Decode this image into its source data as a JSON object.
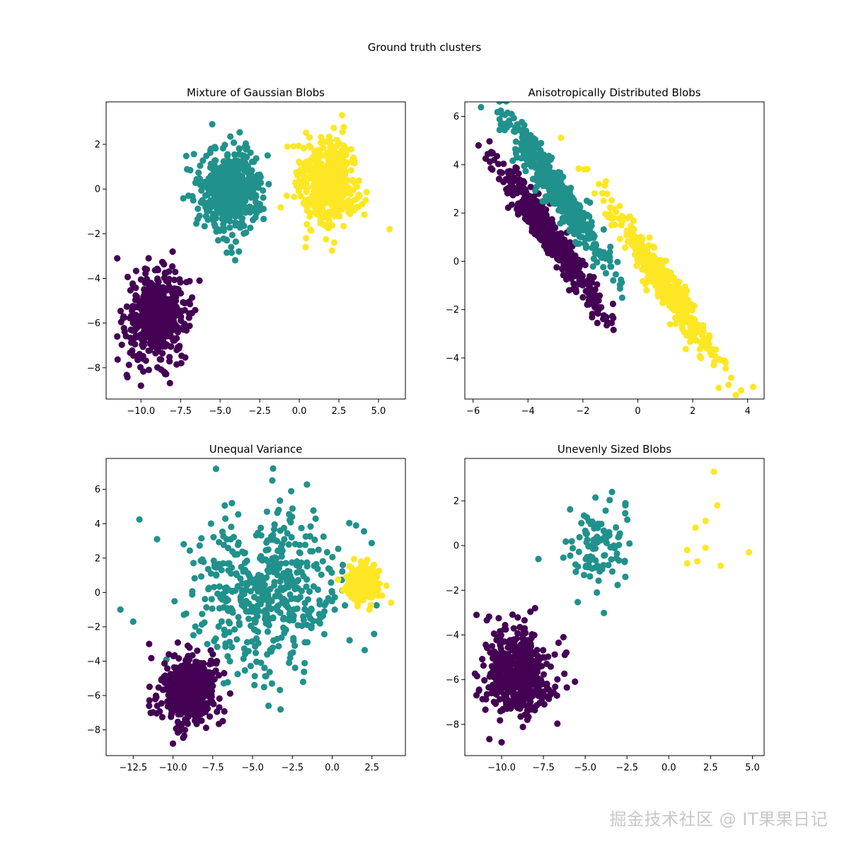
{
  "figure": {
    "suptitle": "Ground truth clusters",
    "colors": {
      "cluster0": "#440154",
      "cluster1": "#21918c",
      "cluster2": "#fde725"
    }
  },
  "watermark": "掘金技术社区 @ IT果果日记",
  "chart_data": [
    {
      "type": "scatter",
      "title": "Mixture of Gaussian Blobs",
      "xlabel": "",
      "ylabel": "",
      "xlim": [
        -12.2,
        6.7
      ],
      "ylim": [
        -9.4,
        3.9
      ],
      "xticks": [
        -10.0,
        -7.5,
        -5.0,
        -2.5,
        0.0,
        2.5,
        5.0
      ],
      "xtick_labels": [
        "−10.0",
        "−7.5",
        "−5.0",
        "−2.5",
        "0.0",
        "2.5",
        "5.0"
      ],
      "yticks": [
        -8,
        -6,
        -4,
        -2,
        0,
        2
      ],
      "ytick_labels": [
        "−8",
        "−6",
        "−4",
        "−2",
        "0",
        "2"
      ],
      "grid": false,
      "clusters": [
        {
          "mean": [
            -9.0,
            -5.7
          ],
          "std": [
            0.95,
            0.95
          ],
          "n": 500,
          "rho": 0,
          "color": "#440154",
          "extra": [
            [
              -11.5,
              -3.1
            ],
            [
              -10.0,
              -8.8
            ],
            [
              -8.0,
              -2.8
            ],
            [
              -6.3,
              -4.1
            ],
            [
              -11.5,
              -6.6
            ],
            [
              -9.5,
              -8.1
            ]
          ]
        },
        {
          "mean": [
            -4.3,
            0.0
          ],
          "std": [
            0.95,
            0.95
          ],
          "n": 500,
          "rho": 0,
          "color": "#21918c",
          "extra": [
            [
              -5.5,
              2.9
            ],
            [
              -4.3,
              -2.6
            ],
            [
              -7.0,
              -0.3
            ],
            [
              -2.0,
              1.5
            ],
            [
              -6.3,
              -1.2
            ]
          ]
        },
        {
          "mean": [
            1.8,
            0.3
          ],
          "std": [
            0.95,
            0.95
          ],
          "n": 500,
          "rho": 0,
          "color": "#fde725",
          "extra": [
            [
              2.7,
              3.3
            ],
            [
              5.7,
              -1.8
            ],
            [
              0.4,
              -2.6
            ],
            [
              -0.8,
              -0.3
            ],
            [
              4.2,
              -0.5
            ],
            [
              2.2,
              -2.4
            ]
          ]
        }
      ]
    },
    {
      "type": "scatter",
      "title": "Anisotropically Distributed Blobs",
      "xlabel": "",
      "ylabel": "",
      "xlim": [
        -6.3,
        4.6
      ],
      "ylim": [
        -5.7,
        6.6
      ],
      "xticks": [
        -6,
        -4,
        -2,
        0,
        2,
        4
      ],
      "xtick_labels": [
        "−6",
        "−4",
        "−2",
        "0",
        "2",
        "4"
      ],
      "yticks": [
        -4,
        -2,
        0,
        2,
        4,
        6
      ],
      "ytick_labels": [
        "−4",
        "−2",
        "0",
        "2",
        "4",
        "6"
      ],
      "grid": false,
      "clusters": [
        {
          "mean": [
            -3.2,
            1.0
          ],
          "std": [
            0.95,
            1.55
          ],
          "n": 500,
          "rho": -0.96,
          "color": "#440154",
          "extra": [
            [
              -5.8,
              4.8
            ],
            [
              -5.3,
              3.8
            ],
            [
              -1.7,
              -1.6
            ],
            [
              -2.5,
              -1.2
            ]
          ]
        },
        {
          "mean": [
            -3.0,
            3.0
          ],
          "std": [
            0.95,
            1.55
          ],
          "n": 500,
          "rho": -0.96,
          "color": "#21918c",
          "extra": [
            [
              -4.6,
              6.1
            ],
            [
              -4.8,
              5.7
            ],
            [
              -1.0,
              0.6
            ],
            [
              -1.6,
              0.7
            ]
          ]
        },
        {
          "mean": [
            1.0,
            -1.0
          ],
          "std": [
            0.95,
            1.55
          ],
          "n": 500,
          "rho": -0.96,
          "color": "#fde725",
          "extra": [
            [
              4.2,
              -5.2
            ],
            [
              3.2,
              -4.2
            ],
            [
              -0.6,
              1.5
            ],
            [
              2.5,
              -3.4
            ]
          ]
        }
      ]
    },
    {
      "type": "scatter",
      "title": "Unequal Variance",
      "xlabel": "",
      "ylabel": "",
      "xlim": [
        -14.2,
        4.6
      ],
      "ylim": [
        -9.5,
        7.8
      ],
      "xticks": [
        -12.5,
        -10.0,
        -7.5,
        -5.0,
        -2.5,
        0.0,
        2.5
      ],
      "xtick_labels": [
        "−12.5",
        "−10.0",
        "−7.5",
        "−5.0",
        "−2.5",
        "0.0",
        "2.5"
      ],
      "yticks": [
        -8,
        -6,
        -4,
        -2,
        0,
        2,
        4,
        6
      ],
      "ytick_labels": [
        "−8",
        "−6",
        "−4",
        "−2",
        "0",
        "2",
        "4",
        "6"
      ],
      "grid": false,
      "clusters": [
        {
          "mean": [
            -4.3,
            0.0
          ],
          "std": [
            2.4,
            2.4
          ],
          "n": 500,
          "rho": 0,
          "color": "#21918c",
          "extra": [
            [
              -7.3,
              7.2
            ],
            [
              -13.3,
              -1.0
            ],
            [
              -12.5,
              -1.7
            ],
            [
              -11.0,
              3.1
            ],
            [
              -4.0,
              -6.6
            ],
            [
              1.5,
              3.9
            ],
            [
              -6.3,
              5.2
            ]
          ]
        },
        {
          "mean": [
            -9.0,
            -5.7
          ],
          "std": [
            0.95,
            0.95
          ],
          "n": 500,
          "rho": 0,
          "color": "#440154",
          "extra": [
            [
              -10.0,
              -8.8
            ],
            [
              -11.5,
              -3.0
            ],
            [
              -7.5,
              -3.6
            ],
            [
              -11.5,
              -6.6
            ]
          ]
        },
        {
          "mean": [
            1.9,
            0.5
          ],
          "std": [
            0.45,
            0.45
          ],
          "n": 500,
          "rho": 0,
          "color": "#fde725",
          "extra": [
            [
              3.7,
              -0.6
            ],
            [
              2.2,
              1.9
            ]
          ]
        }
      ]
    },
    {
      "type": "scatter",
      "title": "Unevenly Sized Blobs",
      "xlabel": "",
      "ylabel": "",
      "xlim": [
        -12.2,
        5.7
      ],
      "ylim": [
        -9.4,
        3.9
      ],
      "xticks": [
        -10.0,
        -7.5,
        -5.0,
        -2.5,
        0.0,
        2.5,
        5.0
      ],
      "xtick_labels": [
        "−10.0",
        "−7.5",
        "−5.0",
        "−2.5",
        "0.0",
        "2.5",
        "5.0"
      ],
      "yticks": [
        -8,
        -6,
        -4,
        -2,
        0,
        2
      ],
      "ytick_labels": [
        "−8",
        "−6",
        "−4",
        "−2",
        "0",
        "2"
      ],
      "grid": false,
      "clusters": [
        {
          "mean": [
            -9.0,
            -5.7
          ],
          "std": [
            0.95,
            0.95
          ],
          "n": 500,
          "rho": 0,
          "color": "#440154",
          "extra": [
            [
              -10.0,
              -8.8
            ],
            [
              -11.5,
              -3.1
            ],
            [
              -8.0,
              -2.8
            ],
            [
              -6.3,
              -4.1
            ],
            [
              -11.5,
              -6.7
            ]
          ]
        },
        {
          "mean": [
            -4.3,
            0.0
          ],
          "std": [
            0.95,
            0.95
          ],
          "n": 100,
          "rho": 0,
          "color": "#21918c",
          "extra": [
            [
              -3.4,
              2.4
            ],
            [
              -4.3,
              -2.1
            ],
            [
              -7.8,
              -0.6
            ],
            [
              -2.6,
              1.8
            ],
            [
              -2.6,
              -1.4
            ]
          ]
        }
      ],
      "points": {
        "color": "#fde725",
        "x": [
          2.7,
          2.9,
          2.2,
          1.6,
          1.1,
          2.2,
          1.1,
          1.7,
          3.1,
          4.8
        ],
        "y": [
          3.3,
          1.8,
          1.1,
          0.8,
          -0.2,
          -0.1,
          -0.8,
          -0.7,
          -0.9,
          -0.3
        ]
      }
    }
  ]
}
